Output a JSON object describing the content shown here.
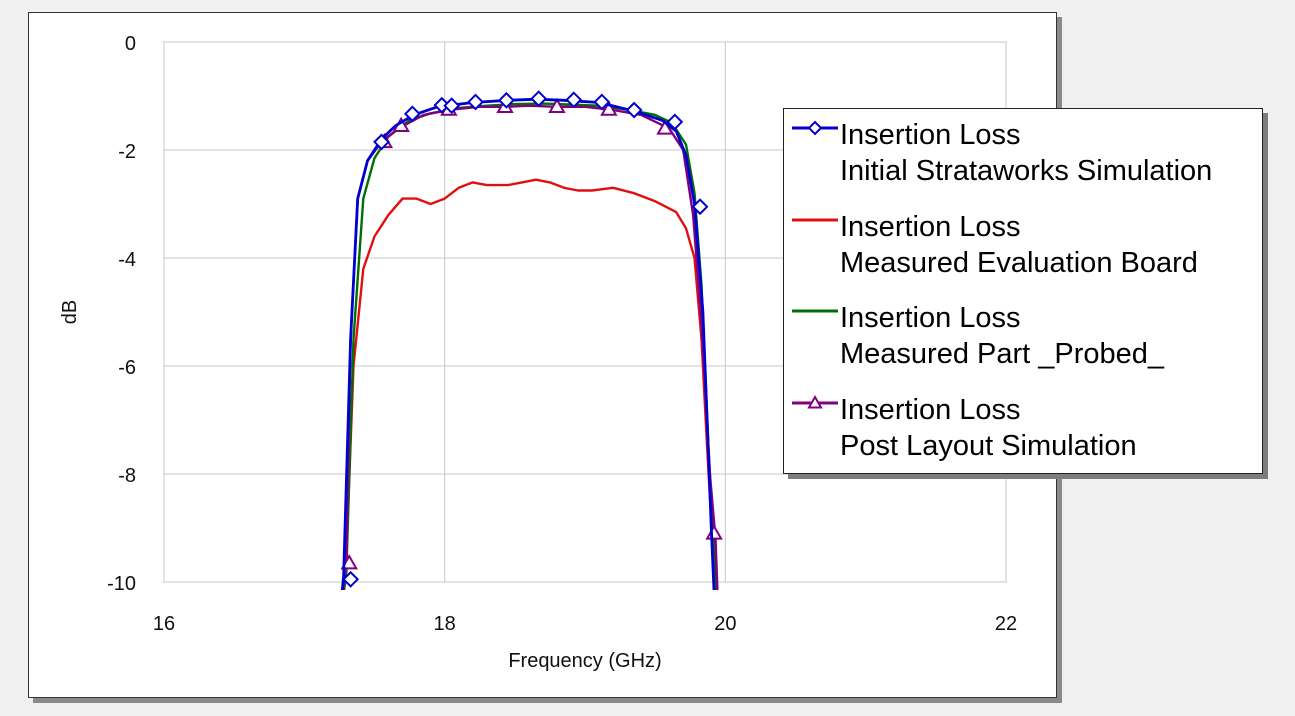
{
  "chart_data": {
    "type": "line",
    "xlabel": "Frequency (GHz)",
    "ylabel": "dB",
    "xlim": [
      16,
      22
    ],
    "ylim": [
      -10,
      0
    ],
    "xticks": [
      16,
      18,
      20,
      22
    ],
    "yticks": [
      0,
      -2,
      -4,
      -6,
      -8,
      -10
    ],
    "grid": true,
    "legend_position": "top-right",
    "series": [
      {
        "name_line1": "Insertion Loss",
        "name_line2": "Initial Strataworks Simulation",
        "color": "#0000d0",
        "marker": "diamond",
        "x": [
          17.2,
          17.28,
          17.33,
          17.38,
          17.45,
          17.55,
          17.65,
          17.78,
          17.95,
          18.2,
          18.45,
          18.65,
          18.85,
          19.1,
          19.35,
          19.55,
          19.65,
          19.72,
          19.78,
          19.84,
          19.9,
          19.95
        ],
        "y": [
          -12,
          -9.9,
          -5.5,
          -2.9,
          -2.2,
          -1.8,
          -1.55,
          -1.35,
          -1.2,
          -1.12,
          -1.08,
          -1.06,
          -1.08,
          -1.12,
          -1.28,
          -1.45,
          -1.65,
          -2.1,
          -3.0,
          -5.0,
          -9.0,
          -12
        ],
        "markers_x": [
          17.33,
          17.55,
          17.77,
          17.98,
          18.05,
          18.22,
          18.44,
          18.67,
          18.92,
          19.12,
          19.35,
          19.64,
          19.82
        ],
        "markers_y": [
          -9.95,
          -1.85,
          -1.33,
          -1.17,
          -1.18,
          -1.11,
          -1.08,
          -1.05,
          -1.07,
          -1.11,
          -1.26,
          -1.48,
          -3.05
        ]
      },
      {
        "name_line1": "Insertion Loss",
        "name_line2": "Measured Evaluation Board",
        "color": "#e01010",
        "marker": "none",
        "x": [
          17.2,
          17.3,
          17.35,
          17.42,
          17.5,
          17.6,
          17.7,
          17.8,
          17.9,
          18.0,
          18.1,
          18.2,
          18.3,
          18.45,
          18.55,
          18.65,
          18.75,
          18.85,
          18.95,
          19.05,
          19.2,
          19.35,
          19.5,
          19.65,
          19.72,
          19.78,
          19.83,
          19.87,
          19.92,
          19.96
        ],
        "y": [
          -12,
          -9.5,
          -6.0,
          -4.2,
          -3.6,
          -3.2,
          -2.9,
          -2.9,
          -3.0,
          -2.9,
          -2.7,
          -2.6,
          -2.65,
          -2.65,
          -2.6,
          -2.55,
          -2.6,
          -2.7,
          -2.75,
          -2.75,
          -2.7,
          -2.8,
          -2.95,
          -3.15,
          -3.45,
          -4.0,
          -5.5,
          -7.5,
          -9.8,
          -12
        ]
      },
      {
        "name_line1": "Insertion Loss",
        "name_line2": "Measured Part _Probed_",
        "color": "#007000",
        "marker": "none",
        "x": [
          17.2,
          17.3,
          17.35,
          17.42,
          17.5,
          17.6,
          17.75,
          17.9,
          18.1,
          18.3,
          18.5,
          18.7,
          18.9,
          19.1,
          19.3,
          19.5,
          19.62,
          19.72,
          19.78,
          19.83,
          19.88,
          19.93,
          19.97
        ],
        "y": [
          -12,
          -9.8,
          -5.5,
          -2.9,
          -2.15,
          -1.75,
          -1.45,
          -1.32,
          -1.22,
          -1.18,
          -1.15,
          -1.14,
          -1.16,
          -1.18,
          -1.25,
          -1.35,
          -1.5,
          -1.9,
          -2.8,
          -4.5,
          -7.5,
          -10,
          -12
        ]
      },
      {
        "name_line1": "Insertion Loss",
        "name_line2": "Post Layout Simulation",
        "color": "#800080",
        "marker": "triangle",
        "x": [
          17.2,
          17.3,
          17.33,
          17.38,
          17.45,
          17.55,
          17.67,
          17.85,
          18.05,
          18.25,
          18.43,
          18.6,
          18.8,
          19.0,
          19.18,
          19.4,
          19.6,
          19.7,
          19.77,
          19.83,
          19.89,
          19.93,
          19.97
        ],
        "y": [
          -12,
          -9.6,
          -5.5,
          -2.9,
          -2.2,
          -1.85,
          -1.6,
          -1.35,
          -1.25,
          -1.2,
          -1.2,
          -1.18,
          -1.2,
          -1.2,
          -1.25,
          -1.35,
          -1.6,
          -2.0,
          -3.2,
          -5.2,
          -8.0,
          -9.2,
          -12
        ],
        "markers_x": [
          17.32,
          17.57,
          17.69,
          18.03,
          18.43,
          18.8,
          19.17,
          19.57,
          19.92
        ],
        "markers_y": [
          -9.65,
          -1.85,
          -1.55,
          -1.25,
          -1.2,
          -1.2,
          -1.25,
          -1.6,
          -9.1
        ]
      }
    ]
  }
}
